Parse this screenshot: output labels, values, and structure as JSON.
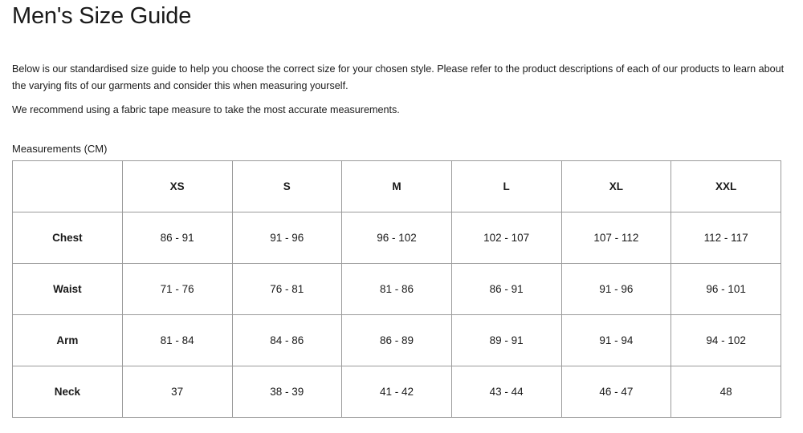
{
  "title": "Men's Size Guide",
  "intro": "Below is our standardised size guide to help you choose the correct size for your chosen style. Please refer to the product descriptions of each of our products to learn about the varying fits of our garments and consider this when measuring yourself.",
  "recommendation": "We recommend using a fabric tape measure to take the most accurate measurements.",
  "table": {
    "caption": "Measurements (CM)",
    "headers": [
      "",
      "XS",
      "S",
      "M",
      "L",
      "XL",
      "XXL"
    ],
    "rows": [
      {
        "label": "Chest",
        "values": [
          "86 - 91",
          "91 - 96",
          "96 - 102",
          "102 - 107",
          "107 - 112",
          "112 - 117"
        ]
      },
      {
        "label": "Waist",
        "values": [
          "71 - 76",
          "76 - 81",
          "81 - 86",
          "86 - 91",
          "91 - 96",
          "96 - 101"
        ]
      },
      {
        "label": "Arm",
        "values": [
          "81 - 84",
          "84 - 86",
          "86 - 89",
          "89 - 91",
          "91 - 94",
          "94 - 102"
        ]
      },
      {
        "label": "Neck",
        "values": [
          "37",
          "38 - 39",
          "41 - 42",
          "43 - 44",
          "46 - 47",
          "48"
        ]
      }
    ]
  }
}
